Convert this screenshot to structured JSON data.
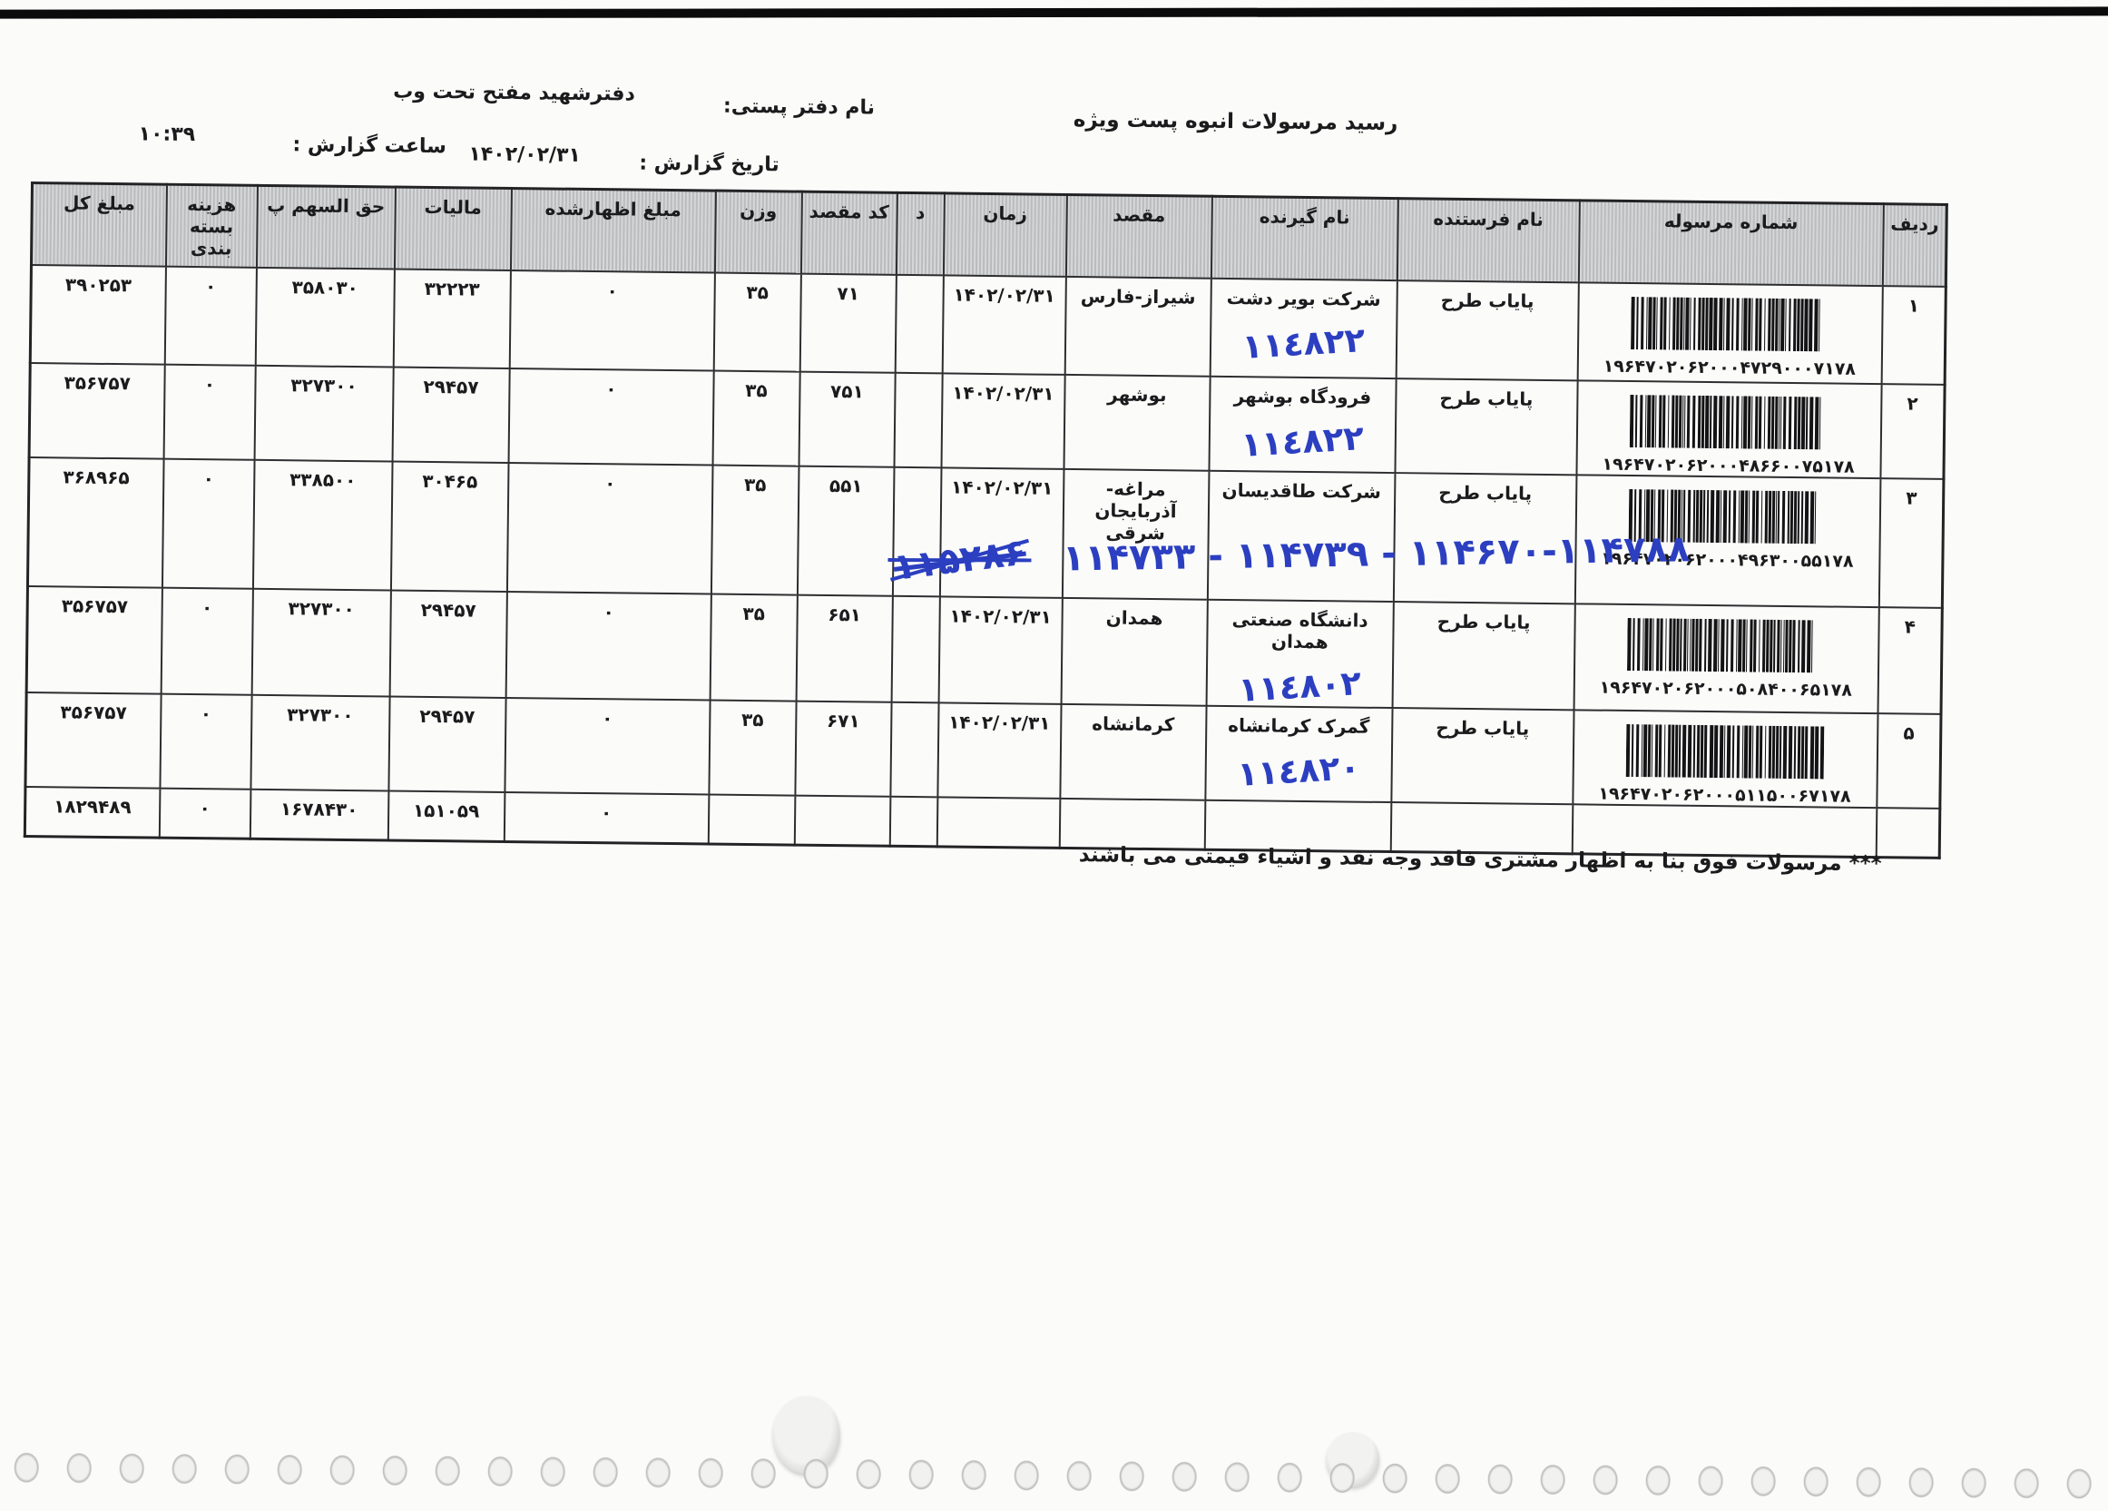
{
  "page": {
    "title": "رسید مرسولات انبوه پست ویژه",
    "office_label": "نام دفتر پستی:",
    "office_value": "دفترشهید مفتح تحت وب",
    "date_label": "تاریخ گزارش :",
    "date_value": "۱۴۰۲/۰۲/۳۱",
    "time_label": "ساعت گزارش :",
    "time_value": "۱۰:۳۹",
    "footer_note": "*** مرسولات فوق  بنا به اظهار مشتری فاقد وجه نقد و اشیاء قیمتی می باشند"
  },
  "table": {
    "columns": {
      "row_no": "ردیف",
      "tracking": "شماره مرسوله",
      "sender": "نام فرستنده",
      "receiver": "نام گیرنده",
      "destination": "مقصد",
      "time": "زمان",
      "d": "د",
      "dest_code": "کد مقصد",
      "weight": "وزن",
      "declared": "مبلغ اظهارشده",
      "tax": "مالیات",
      "share": "حق السهم پ",
      "packing": "هزینه بسته بندی",
      "total": "مبلغ کل"
    },
    "rows": [
      {
        "row_no": "۱",
        "tracking": "۱۹۶۴۷۰۲۰۶۲۰۰۰۴۷۲۹۰۰۰۷۱۷۸",
        "sender": "پایاب طرح",
        "receiver": "شرکت بویر دشت",
        "receiver_note": "۱۱٤۸۲۲",
        "destination": "شیراز-فارس",
        "time": "۱۴۰۲/۰۲/۳۱",
        "d": "",
        "dest_code": "۷۱",
        "weight": "۳۵",
        "declared": "۰",
        "tax": "۳۲۲۲۳",
        "share": "۳۵۸۰۳۰",
        "packing": "۰",
        "total": "۳۹۰۲۵۳"
      },
      {
        "row_no": "۲",
        "tracking": "۱۹۶۴۷۰۲۰۶۲۰۰۰۴۸۶۶۰۰۷۵۱۷۸",
        "sender": "پایاب طرح",
        "receiver": "فرودگاه بوشهر",
        "receiver_note": "۱۱٤۸۲۲",
        "destination": "بوشهر",
        "time": "۱۴۰۲/۰۲/۳۱",
        "d": "",
        "dest_code": "۷۵۱",
        "weight": "۳۵",
        "declared": "۰",
        "tax": "۲۹۴۵۷",
        "share": "۳۲۷۳۰۰",
        "packing": "۰",
        "total": "۳۵۶۷۵۷"
      },
      {
        "row_no": "۳",
        "tracking": "۱۹۶۴۷۰۲۰۶۲۰۰۰۴۹۶۳۰۰۵۵۱۷۸",
        "sender": "پایاب طرح",
        "receiver": "شرکت طاقدیسان",
        "receiver_note": "",
        "destination": "مراغه-آذربایجان شرقی",
        "time": "۱۴۰۲/۰۲/۳۱",
        "d": "",
        "dest_code": "۵۵۱",
        "weight": "۳۵",
        "declared": "۰",
        "tax": "۳۰۴۶۵",
        "share": "۳۳۸۵۰۰",
        "packing": "۰",
        "total": "۳۶۸۹۶۵"
      },
      {
        "row_no": "۴",
        "tracking": "۱۹۶۴۷۰۲۰۶۲۰۰۰۵۰۸۴۰۰۶۵۱۷۸",
        "sender": "پایاب طرح",
        "receiver": "دانشگاه صنعتی همدان",
        "receiver_note": "۱۱٤۸۰۲",
        "destination": "همدان",
        "time": "۱۴۰۲/۰۲/۳۱",
        "d": "",
        "dest_code": "۶۵۱",
        "weight": "۳۵",
        "declared": "۰",
        "tax": "۲۹۴۵۷",
        "share": "۳۲۷۳۰۰",
        "packing": "۰",
        "total": "۳۵۶۷۵۷"
      },
      {
        "row_no": "۵",
        "tracking": "۱۹۶۴۷۰۲۰۶۲۰۰۰۵۱۱۵۰۰۶۷۱۷۸",
        "sender": "پایاب طرح",
        "receiver": "گمرک کرمانشاه",
        "receiver_note": "۱۱٤۸۲۰",
        "destination": "کرمانشاه",
        "time": "۱۴۰۲/۰۲/۳۱",
        "d": "",
        "dest_code": "۶۷۱",
        "weight": "۳۵",
        "declared": "۰",
        "tax": "۲۹۴۵۷",
        "share": "۳۲۷۳۰۰",
        "packing": "۰",
        "total": "۳۵۶۷۵۷"
      }
    ],
    "totals": {
      "declared": "۰",
      "tax": "۱۵۱۰۵۹",
      "share": "۱۶۷۸۴۳۰",
      "packing": "۰",
      "total": "۱۸۲۹۴۸۹"
    },
    "annotation": {
      "handwritten_numbers": "۱۱۴۷۳۳ - ۱۱۴۷۳۹ - ۱۱۴۶۷۰-۱۱۴۷۸۸",
      "crossed_out": "۱۱۵۲۸۶"
    }
  },
  "colors": {
    "handwriting": "#2b3fc0",
    "header_fill": "#c6c7c9",
    "ink": "#1b1b1d"
  }
}
